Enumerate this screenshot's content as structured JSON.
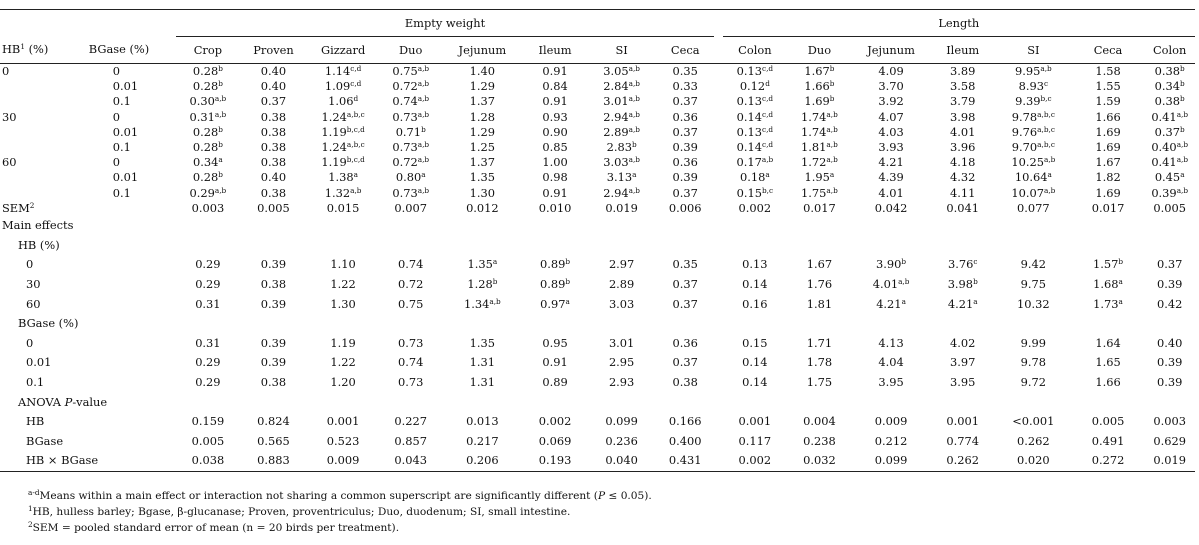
{
  "header": {
    "group_empty_weight": "Empty weight",
    "group_length": "Length",
    "hb_label": "HB",
    "hb_sup": "1",
    "hb_unit": " (%)",
    "bgase_label": "BGase (%)",
    "empty_weight_cols": [
      "Crop",
      "Proven",
      "Gizzard",
      "Duo",
      "Jejunum",
      "Ileum",
      "SI",
      "Ceca"
    ],
    "length_cols": [
      "Colon",
      "Duo",
      "Jejunum",
      "Ileum",
      "SI",
      "Ceca",
      "Colon"
    ]
  },
  "treatment_rows": [
    {
      "hb": "0",
      "bgase": "0",
      "cells": [
        [
          "0.28",
          "b"
        ],
        [
          "0.40",
          ""
        ],
        [
          "1.14",
          "c,d"
        ],
        [
          "0.75",
          "a,b"
        ],
        [
          "1.40",
          ""
        ],
        [
          "0.91",
          ""
        ],
        [
          "3.05",
          "a,b"
        ],
        [
          "0.35",
          ""
        ],
        [
          "0.13",
          "c,d"
        ],
        [
          "1.67",
          "b"
        ],
        [
          "4.09",
          ""
        ],
        [
          "3.89",
          ""
        ],
        [
          "9.95",
          "a,b"
        ],
        [
          "1.58",
          ""
        ],
        [
          "0.38",
          "b"
        ]
      ]
    },
    {
      "hb": "",
      "bgase": "0.01",
      "cells": [
        [
          "0.28",
          "b"
        ],
        [
          "0.40",
          ""
        ],
        [
          "1.09",
          "c,d"
        ],
        [
          "0.72",
          "a,b"
        ],
        [
          "1.29",
          ""
        ],
        [
          "0.84",
          ""
        ],
        [
          "2.84",
          "a,b"
        ],
        [
          "0.33",
          ""
        ],
        [
          "0.12",
          "d"
        ],
        [
          "1.66",
          "b"
        ],
        [
          "3.70",
          ""
        ],
        [
          "3.58",
          ""
        ],
        [
          "8.93",
          "c"
        ],
        [
          "1.55",
          ""
        ],
        [
          "0.34",
          "b"
        ]
      ]
    },
    {
      "hb": "",
      "bgase": "0.1",
      "cells": [
        [
          "0.30",
          "a,b"
        ],
        [
          "0.37",
          ""
        ],
        [
          "1.06",
          "d"
        ],
        [
          "0.74",
          "a,b"
        ],
        [
          "1.37",
          ""
        ],
        [
          "0.91",
          ""
        ],
        [
          "3.01",
          "a,b"
        ],
        [
          "0.37",
          ""
        ],
        [
          "0.13",
          "c,d"
        ],
        [
          "1.69",
          "b"
        ],
        [
          "3.92",
          ""
        ],
        [
          "3.79",
          ""
        ],
        [
          "9.39",
          "b,c"
        ],
        [
          "1.59",
          ""
        ],
        [
          "0.38",
          "b"
        ]
      ]
    },
    {
      "hb": "30",
      "bgase": "0",
      "cells": [
        [
          "0.31",
          "a,b"
        ],
        [
          "0.38",
          ""
        ],
        [
          "1.24",
          "a,b,c"
        ],
        [
          "0.73",
          "a,b"
        ],
        [
          "1.28",
          ""
        ],
        [
          "0.93",
          ""
        ],
        [
          "2.94",
          "a,b"
        ],
        [
          "0.36",
          ""
        ],
        [
          "0.14",
          "c,d"
        ],
        [
          "1.74",
          "a,b"
        ],
        [
          "4.07",
          ""
        ],
        [
          "3.98",
          ""
        ],
        [
          "9.78",
          "a,b,c"
        ],
        [
          "1.66",
          ""
        ],
        [
          "0.41",
          "a,b"
        ]
      ]
    },
    {
      "hb": "",
      "bgase": "0.01",
      "cells": [
        [
          "0.28",
          "b"
        ],
        [
          "0.38",
          ""
        ],
        [
          "1.19",
          "b,c,d"
        ],
        [
          "0.71",
          "b"
        ],
        [
          "1.29",
          ""
        ],
        [
          "0.90",
          ""
        ],
        [
          "2.89",
          "a,b"
        ],
        [
          "0.37",
          ""
        ],
        [
          "0.13",
          "c,d"
        ],
        [
          "1.74",
          "a,b"
        ],
        [
          "4.03",
          ""
        ],
        [
          "4.01",
          ""
        ],
        [
          "9.76",
          "a,b,c"
        ],
        [
          "1.69",
          ""
        ],
        [
          "0.37",
          "b"
        ]
      ]
    },
    {
      "hb": "",
      "bgase": "0.1",
      "cells": [
        [
          "0.28",
          "b"
        ],
        [
          "0.38",
          ""
        ],
        [
          "1.24",
          "a,b,c"
        ],
        [
          "0.73",
          "a,b"
        ],
        [
          "1.25",
          ""
        ],
        [
          "0.85",
          ""
        ],
        [
          "2.83",
          "b"
        ],
        [
          "0.39",
          ""
        ],
        [
          "0.14",
          "c,d"
        ],
        [
          "1.81",
          "a,b"
        ],
        [
          "3.93",
          ""
        ],
        [
          "3.96",
          ""
        ],
        [
          "9.70",
          "a,b,c"
        ],
        [
          "1.69",
          ""
        ],
        [
          "0.40",
          "a,b"
        ]
      ]
    },
    {
      "hb": "60",
      "bgase": "0",
      "cells": [
        [
          "0.34",
          "a"
        ],
        [
          "0.38",
          ""
        ],
        [
          "1.19",
          "b,c,d"
        ],
        [
          "0.72",
          "a,b"
        ],
        [
          "1.37",
          ""
        ],
        [
          "1.00",
          ""
        ],
        [
          "3.03",
          "a,b"
        ],
        [
          "0.36",
          ""
        ],
        [
          "0.17",
          "a,b"
        ],
        [
          "1.72",
          "a,b"
        ],
        [
          "4.21",
          ""
        ],
        [
          "4.18",
          ""
        ],
        [
          "10.25",
          "a,b"
        ],
        [
          "1.67",
          ""
        ],
        [
          "0.41",
          "a,b"
        ]
      ]
    },
    {
      "hb": "",
      "bgase": "0.01",
      "cells": [
        [
          "0.28",
          "b"
        ],
        [
          "0.40",
          ""
        ],
        [
          "1.38",
          "a"
        ],
        [
          "0.80",
          "a"
        ],
        [
          "1.35",
          ""
        ],
        [
          "0.98",
          ""
        ],
        [
          "3.13",
          "a"
        ],
        [
          "0.39",
          ""
        ],
        [
          "0.18",
          "a"
        ],
        [
          "1.95",
          "a"
        ],
        [
          "4.39",
          ""
        ],
        [
          "4.32",
          ""
        ],
        [
          "10.64",
          "a"
        ],
        [
          "1.82",
          ""
        ],
        [
          "0.45",
          "a"
        ]
      ]
    },
    {
      "hb": "",
      "bgase": "0.1",
      "cells": [
        [
          "0.29",
          "a,b"
        ],
        [
          "0.38",
          ""
        ],
        [
          "1.32",
          "a,b"
        ],
        [
          "0.73",
          "a,b"
        ],
        [
          "1.30",
          ""
        ],
        [
          "0.91",
          ""
        ],
        [
          "2.94",
          "a,b"
        ],
        [
          "0.37",
          ""
        ],
        [
          "0.15",
          "b,c"
        ],
        [
          "1.75",
          "a,b"
        ],
        [
          "4.01",
          ""
        ],
        [
          "4.11",
          ""
        ],
        [
          "10.07",
          "a,b"
        ],
        [
          "1.69",
          ""
        ],
        [
          "0.39",
          "a,b"
        ]
      ]
    }
  ],
  "sem": {
    "label": "SEM",
    "sup": "2",
    "values": [
      "0.003",
      "0.005",
      "0.015",
      "0.007",
      "0.012",
      "0.010",
      "0.019",
      "0.006",
      "0.002",
      "0.017",
      "0.042",
      "0.041",
      "0.077",
      "0.017",
      "0.005"
    ]
  },
  "main_effects": {
    "label": "Main effects",
    "hb_label": "HB (%)",
    "hb_rows": [
      {
        "level": "0",
        "cells": [
          [
            "0.29",
            ""
          ],
          [
            "0.39",
            ""
          ],
          [
            "1.10",
            ""
          ],
          [
            "0.74",
            ""
          ],
          [
            "1.35",
            "a"
          ],
          [
            "0.89",
            "b"
          ],
          [
            "2.97",
            ""
          ],
          [
            "0.35",
            ""
          ],
          [
            "0.13",
            ""
          ],
          [
            "1.67",
            ""
          ],
          [
            "3.90",
            "b"
          ],
          [
            "3.76",
            "c"
          ],
          [
            "9.42",
            ""
          ],
          [
            "1.57",
            "b"
          ],
          [
            "0.37",
            ""
          ]
        ]
      },
      {
        "level": "30",
        "cells": [
          [
            "0.29",
            ""
          ],
          [
            "0.38",
            ""
          ],
          [
            "1.22",
            ""
          ],
          [
            "0.72",
            ""
          ],
          [
            "1.28",
            "b"
          ],
          [
            "0.89",
            "b"
          ],
          [
            "2.89",
            ""
          ],
          [
            "0.37",
            ""
          ],
          [
            "0.14",
            ""
          ],
          [
            "1.76",
            ""
          ],
          [
            "4.01",
            "a,b"
          ],
          [
            "3.98",
            "b"
          ],
          [
            "9.75",
            ""
          ],
          [
            "1.68",
            "a"
          ],
          [
            "0.39",
            ""
          ]
        ]
      },
      {
        "level": "60",
        "cells": [
          [
            "0.31",
            ""
          ],
          [
            "0.39",
            ""
          ],
          [
            "1.30",
            ""
          ],
          [
            "0.75",
            ""
          ],
          [
            "1.34",
            "a,b"
          ],
          [
            "0.97",
            "a"
          ],
          [
            "3.03",
            ""
          ],
          [
            "0.37",
            ""
          ],
          [
            "0.16",
            ""
          ],
          [
            "1.81",
            ""
          ],
          [
            "4.21",
            "a"
          ],
          [
            "4.21",
            "a"
          ],
          [
            "10.32",
            ""
          ],
          [
            "1.73",
            "a"
          ],
          [
            "0.42",
            ""
          ]
        ]
      }
    ],
    "bgase_label": "BGase (%)",
    "bgase_rows": [
      {
        "level": "0",
        "cells": [
          [
            "0.31",
            ""
          ],
          [
            "0.39",
            ""
          ],
          [
            "1.19",
            ""
          ],
          [
            "0.73",
            ""
          ],
          [
            "1.35",
            ""
          ],
          [
            "0.95",
            ""
          ],
          [
            "3.01",
            ""
          ],
          [
            "0.36",
            ""
          ],
          [
            "0.15",
            ""
          ],
          [
            "1.71",
            ""
          ],
          [
            "4.13",
            ""
          ],
          [
            "4.02",
            ""
          ],
          [
            "9.99",
            ""
          ],
          [
            "1.64",
            ""
          ],
          [
            "0.40",
            ""
          ]
        ]
      },
      {
        "level": "0.01",
        "cells": [
          [
            "0.29",
            ""
          ],
          [
            "0.39",
            ""
          ],
          [
            "1.22",
            ""
          ],
          [
            "0.74",
            ""
          ],
          [
            "1.31",
            ""
          ],
          [
            "0.91",
            ""
          ],
          [
            "2.95",
            ""
          ],
          [
            "0.37",
            ""
          ],
          [
            "0.14",
            ""
          ],
          [
            "1.78",
            ""
          ],
          [
            "4.04",
            ""
          ],
          [
            "3.97",
            ""
          ],
          [
            "9.78",
            ""
          ],
          [
            "1.65",
            ""
          ],
          [
            "0.39",
            ""
          ]
        ]
      },
      {
        "level": "0.1",
        "cells": [
          [
            "0.29",
            ""
          ],
          [
            "0.38",
            ""
          ],
          [
            "1.20",
            ""
          ],
          [
            "0.73",
            ""
          ],
          [
            "1.31",
            ""
          ],
          [
            "0.89",
            ""
          ],
          [
            "2.93",
            ""
          ],
          [
            "0.38",
            ""
          ],
          [
            "0.14",
            ""
          ],
          [
            "1.75",
            ""
          ],
          [
            "3.95",
            ""
          ],
          [
            "3.95",
            ""
          ],
          [
            "9.72",
            ""
          ],
          [
            "1.66",
            ""
          ],
          [
            "0.39",
            ""
          ]
        ]
      }
    ]
  },
  "anova": {
    "label_pre": "ANOVA ",
    "label_p": "P",
    "label_post": "-value",
    "rows": [
      {
        "label": "HB",
        "cells": [
          "0.159",
          "0.824",
          "0.001",
          "0.227",
          "0.013",
          "0.002",
          "0.099",
          "0.166",
          "0.001",
          "0.004",
          "0.009",
          "0.001",
          "<0.001",
          "0.005",
          "0.003"
        ]
      },
      {
        "label": "BGase",
        "cells": [
          "0.005",
          "0.565",
          "0.523",
          "0.857",
          "0.217",
          "0.069",
          "0.236",
          "0.400",
          "0.117",
          "0.238",
          "0.212",
          "0.774",
          "0.262",
          "0.491",
          "0.629"
        ]
      },
      {
        "label": "HB × BGase",
        "cells": [
          "0.038",
          "0.883",
          "0.009",
          "0.043",
          "0.206",
          "0.193",
          "0.040",
          "0.431",
          "0.002",
          "0.032",
          "0.099",
          "0.262",
          "0.020",
          "0.272",
          "0.019"
        ]
      }
    ]
  },
  "footnotes": {
    "n1_sup": "a-d",
    "n1_text": "Means within a main effect or interaction not sharing a common superscript are significantly different (",
    "n1_p": "P",
    "n1_tail": " ≤ 0.05).",
    "n2_sup": "1",
    "n2_text": "HB, hulless barley; Bgase, β-glucanase; Proven, proventriculus; Duo, duodenum; SI, small intestine.",
    "n3_sup": "2",
    "n3_text": "SEM = pooled standard error of mean (n = 20 birds per treatment)."
  }
}
